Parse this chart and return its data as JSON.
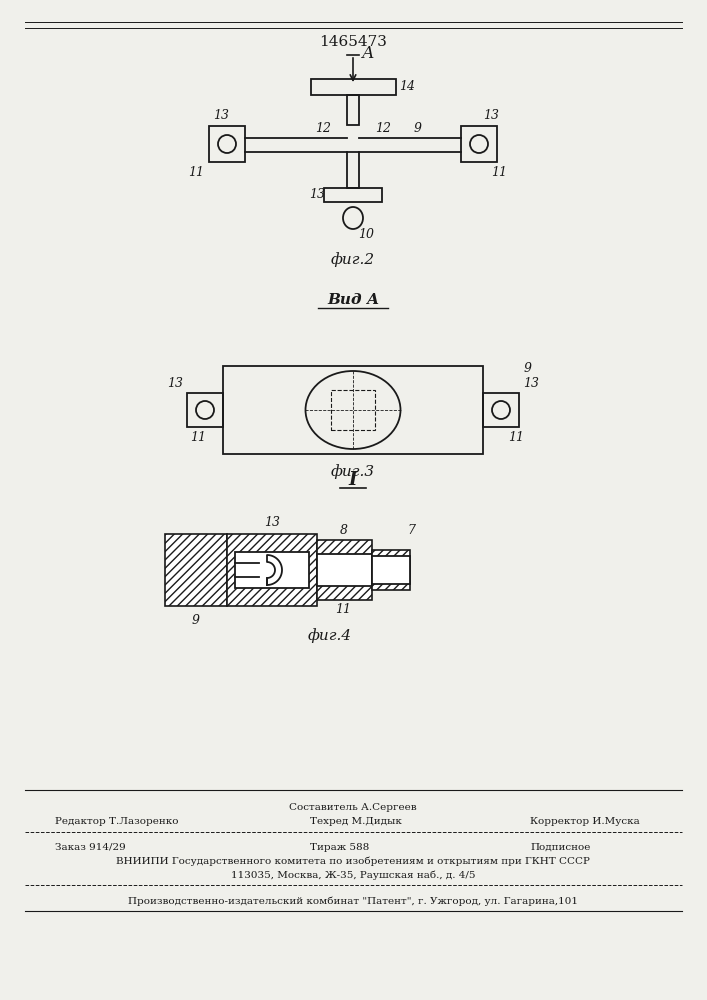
{
  "patent_number": "1465473",
  "background_color": "#f0f0eb",
  "line_color": "#1a1a1a",
  "fig2_label": "фиг.2",
  "fig3_label": "фиг.3",
  "fig4_label": "фиг.4",
  "vid_a_label": "Вид А",
  "section_I_label": "I",
  "arrow_label": "А",
  "footer": {
    "col2_top": "Составитель А.Сергеев",
    "col1_mid": "Редактор Т.Лазоренко",
    "col2_mid": "Техред М.Дидык",
    "col3_mid": "Корректор И.Муска",
    "row2_col1": "Заказ 914/29",
    "row2_col2": "Тираж 588",
    "row2_col3": "Подписное",
    "row3": "ВНИИПИ Государственного комитета по изобретениям и открытиям при ГКНТ СССР",
    "row4": "113035, Москва, Ж-35, Раушская наб., д. 4/5",
    "row5": "Производственно-издательский комбинат \"Патент\", г. Ужгород, ул. Гагарина,101"
  }
}
